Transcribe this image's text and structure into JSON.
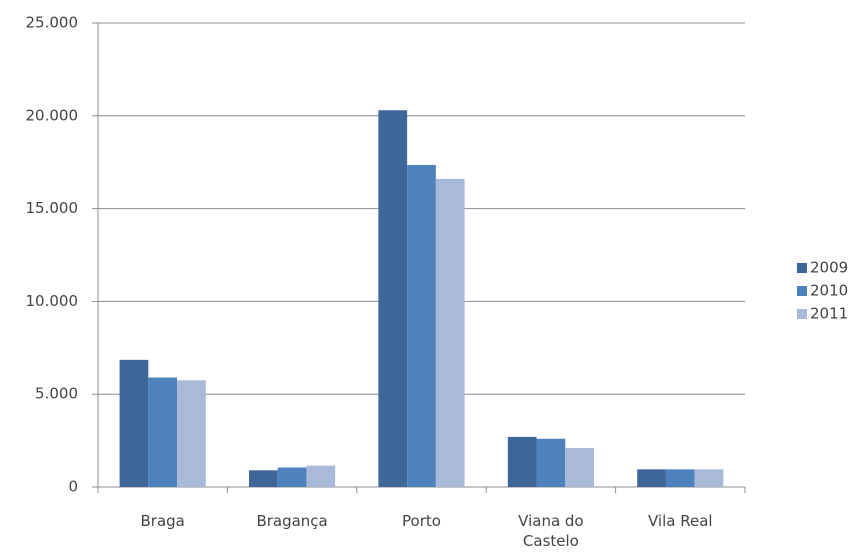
{
  "chart_data": {
    "type": "bar",
    "categories": [
      "Braga",
      "Bragança",
      "Porto",
      "Viana do Castelo",
      "Vila Real"
    ],
    "series": [
      {
        "name": "2009",
        "color": "#3f6698",
        "values": [
          6850,
          900,
          20300,
          2700,
          950
        ]
      },
      {
        "name": "2010",
        "color": "#4f81bd",
        "values": [
          5900,
          1050,
          17350,
          2600,
          950
        ]
      },
      {
        "name": "2011",
        "color": "#a9b9d8",
        "values": [
          5750,
          1150,
          16600,
          2100,
          950
        ]
      }
    ],
    "ylim": [
      0,
      25000
    ],
    "yticks": [
      0,
      {
        "value": 5000,
        "label": "5.000"
      },
      {
        "value": 10000,
        "label": "10.000"
      },
      {
        "value": 15000,
        "label": "15.000"
      },
      {
        "value": 20000,
        "label": "20.000"
      },
      {
        "value": 25000,
        "label": "25.000"
      }
    ],
    "grid": true,
    "legend": "right"
  }
}
